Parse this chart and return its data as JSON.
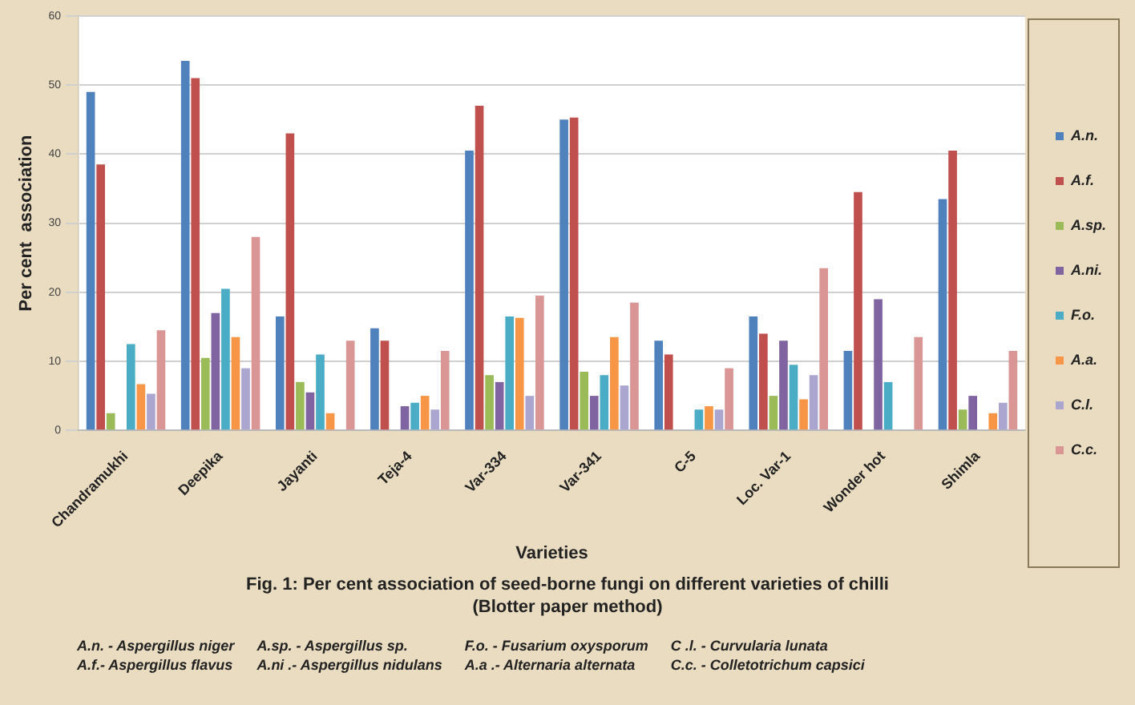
{
  "chart_data": {
    "type": "bar",
    "title": "Fig. 1: Per cent association of seed-borne fungi on different varieties of chilli",
    "subtitle": "(Blotter paper method)",
    "xlabel": "Varieties",
    "ylabel": "Per cent  association",
    "categories": [
      "Chandramukhi",
      "Deepika",
      "Jayanti",
      "Teja-4",
      "Var-334",
      "Var-341",
      "C-5",
      "Loc. Var-1",
      "Wonder hot",
      "Shimla"
    ],
    "series": [
      {
        "name": "A.n.",
        "color": "#4f81bd",
        "values": [
          49,
          53.5,
          16.5,
          14.8,
          40.5,
          45,
          13,
          16.5,
          11.5,
          33.5
        ]
      },
      {
        "name": "A.f.",
        "color": "#c0504d",
        "values": [
          38.5,
          51,
          43,
          13,
          47,
          45.3,
          11,
          14,
          34.5,
          40.5
        ]
      },
      {
        "name": "A.sp.",
        "color": "#9bbb59",
        "values": [
          2.5,
          10.5,
          7,
          0,
          8,
          8.5,
          0,
          5,
          0,
          3
        ]
      },
      {
        "name": "A.ni.",
        "color": "#8064a2",
        "values": [
          0,
          17,
          5.5,
          3.5,
          7,
          5,
          0,
          13,
          19,
          5
        ]
      },
      {
        "name": "F.o.",
        "color": "#4bacc6",
        "values": [
          12.5,
          20.5,
          11,
          4,
          16.5,
          8,
          3,
          9.5,
          7,
          0
        ]
      },
      {
        "name": "A.a.",
        "color": "#f79646",
        "values": [
          6.7,
          13.5,
          2.5,
          5,
          16.3,
          13.5,
          3.5,
          4.5,
          0,
          2.5
        ]
      },
      {
        "name": "C.l.",
        "color": "#aaa6d0",
        "values": [
          5.3,
          9,
          0,
          3,
          5,
          6.5,
          3,
          8,
          0,
          4
        ]
      },
      {
        "name": "C.c.",
        "color": "#d99694",
        "values": [
          14.5,
          28,
          13,
          11.5,
          19.5,
          18.5,
          9,
          23.5,
          13.5,
          11.5
        ]
      }
    ],
    "ylim": [
      0,
      60
    ],
    "yticks": [
      0,
      10,
      20,
      30,
      40,
      50,
      60
    ],
    "grid": "y",
    "legend": "right",
    "annotations": [
      "A.n. - Aspergillus niger",
      "A.sp. - Aspergillus sp.",
      "F.o. - Fusarium oxysporum",
      "C .l. - Curvularia lunata",
      "A.f.- Aspergillus flavus",
      "A.ni .- Aspergillus nidulans",
      "A.a .- Alternaria alternata",
      "C.c. - Colletotrichum capsici"
    ]
  }
}
